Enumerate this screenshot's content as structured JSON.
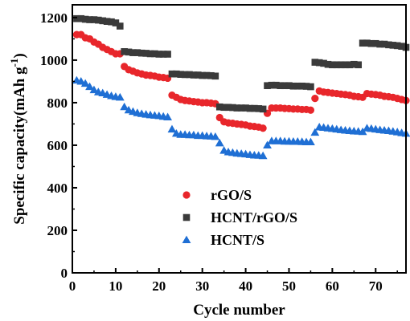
{
  "chart_data": {
    "type": "scatter",
    "title": "",
    "xlabel": "Cycle number",
    "ylabel": "Specific capacity(mAh g",
    "ylabel_sup": "-1",
    "ylabel_close": ")",
    "xlim": [
      0,
      77
    ],
    "ylim": [
      0,
      1260
    ],
    "xticks": [
      0,
      10,
      20,
      30,
      40,
      50,
      60,
      70
    ],
    "yticks": [
      0,
      200,
      400,
      600,
      800,
      1000,
      1200
    ],
    "grid": false,
    "legend_position": "lower-center",
    "series": [
      {
        "name": "rGO/S",
        "marker": "circle",
        "color": "#e8262b",
        "x": [
          1,
          2,
          3,
          4,
          5,
          6,
          7,
          8,
          9,
          10,
          11,
          12,
          13,
          14,
          15,
          16,
          17,
          18,
          19,
          20,
          21,
          22,
          23,
          24,
          25,
          26,
          27,
          28,
          29,
          30,
          31,
          32,
          33,
          34,
          35,
          36,
          37,
          38,
          39,
          40,
          41,
          42,
          43,
          44,
          45,
          46,
          47,
          48,
          49,
          50,
          51,
          52,
          53,
          54,
          55,
          56,
          57,
          58,
          59,
          60,
          61,
          62,
          63,
          64,
          65,
          66,
          67,
          68,
          69,
          70,
          71,
          72,
          73,
          74,
          75,
          76,
          77
        ],
        "y": [
          1120,
          1120,
          1105,
          1100,
          1085,
          1075,
          1060,
          1050,
          1040,
          1030,
          1030,
          970,
          955,
          948,
          940,
          935,
          930,
          928,
          925,
          920,
          918,
          915,
          835,
          825,
          815,
          810,
          808,
          805,
          803,
          800,
          800,
          798,
          795,
          730,
          710,
          705,
          703,
          700,
          698,
          695,
          690,
          688,
          685,
          680,
          750,
          775,
          775,
          775,
          773,
          772,
          770,
          770,
          768,
          768,
          765,
          820,
          855,
          850,
          848,
          845,
          843,
          840,
          838,
          835,
          830,
          828,
          825,
          843,
          840,
          838,
          835,
          830,
          828,
          825,
          820,
          815,
          810
        ]
      },
      {
        "name": "HCNT/rGO/S",
        "marker": "square",
        "color": "#3a3a3a",
        "x": [
          1,
          2,
          3,
          4,
          5,
          6,
          7,
          8,
          9,
          10,
          11,
          12,
          13,
          14,
          15,
          16,
          17,
          18,
          19,
          20,
          21,
          22,
          23,
          24,
          25,
          26,
          27,
          28,
          29,
          30,
          31,
          32,
          33,
          34,
          35,
          36,
          37,
          38,
          39,
          40,
          41,
          42,
          43,
          44,
          45,
          46,
          47,
          48,
          49,
          50,
          51,
          52,
          53,
          54,
          55,
          56,
          57,
          58,
          59,
          60,
          61,
          62,
          63,
          64,
          65,
          66,
          67,
          68,
          69,
          70,
          71,
          72,
          73,
          74,
          75,
          76,
          77
        ],
        "y": [
          1195,
          1195,
          1192,
          1190,
          1190,
          1188,
          1185,
          1182,
          1180,
          1175,
          1160,
          1040,
          1038,
          1035,
          1035,
          1033,
          1032,
          1030,
          1030,
          1028,
          1028,
          1028,
          935,
          935,
          933,
          932,
          932,
          930,
          930,
          928,
          928,
          927,
          925,
          780,
          778,
          778,
          777,
          775,
          775,
          775,
          773,
          773,
          772,
          770,
          880,
          882,
          882,
          880,
          880,
          880,
          878,
          878,
          878,
          877,
          875,
          990,
          988,
          985,
          980,
          978,
          978,
          978,
          978,
          978,
          980,
          978,
          1080,
          1080,
          1078,
          1078,
          1075,
          1075,
          1072,
          1070,
          1068,
          1065,
          1060
        ]
      },
      {
        "name": "HCNT/S",
        "marker": "triangle",
        "color": "#1f6fd4",
        "x": [
          1,
          2,
          3,
          4,
          5,
          6,
          7,
          8,
          9,
          10,
          11,
          12,
          13,
          14,
          15,
          16,
          17,
          18,
          19,
          20,
          21,
          22,
          23,
          24,
          25,
          26,
          27,
          28,
          29,
          30,
          31,
          32,
          33,
          34,
          35,
          36,
          37,
          38,
          39,
          40,
          41,
          42,
          43,
          44,
          45,
          46,
          47,
          48,
          49,
          50,
          51,
          52,
          53,
          54,
          55,
          56,
          57,
          58,
          59,
          60,
          61,
          62,
          63,
          64,
          65,
          66,
          67,
          68,
          69,
          70,
          71,
          72,
          73,
          74,
          75,
          76,
          77
        ],
        "y": [
          905,
          900,
          890,
          875,
          860,
          850,
          845,
          838,
          832,
          828,
          825,
          780,
          765,
          758,
          752,
          748,
          745,
          742,
          740,
          738,
          735,
          732,
          675,
          655,
          650,
          650,
          648,
          648,
          645,
          645,
          643,
          642,
          640,
          610,
          575,
          568,
          565,
          562,
          560,
          558,
          555,
          553,
          552,
          550,
          600,
          620,
          620,
          620,
          618,
          618,
          617,
          617,
          616,
          615,
          615,
          660,
          685,
          683,
          680,
          678,
          675,
          672,
          670,
          668,
          666,
          665,
          663,
          680,
          678,
          675,
          672,
          670,
          668,
          665,
          662,
          658,
          655
        ]
      }
    ]
  }
}
